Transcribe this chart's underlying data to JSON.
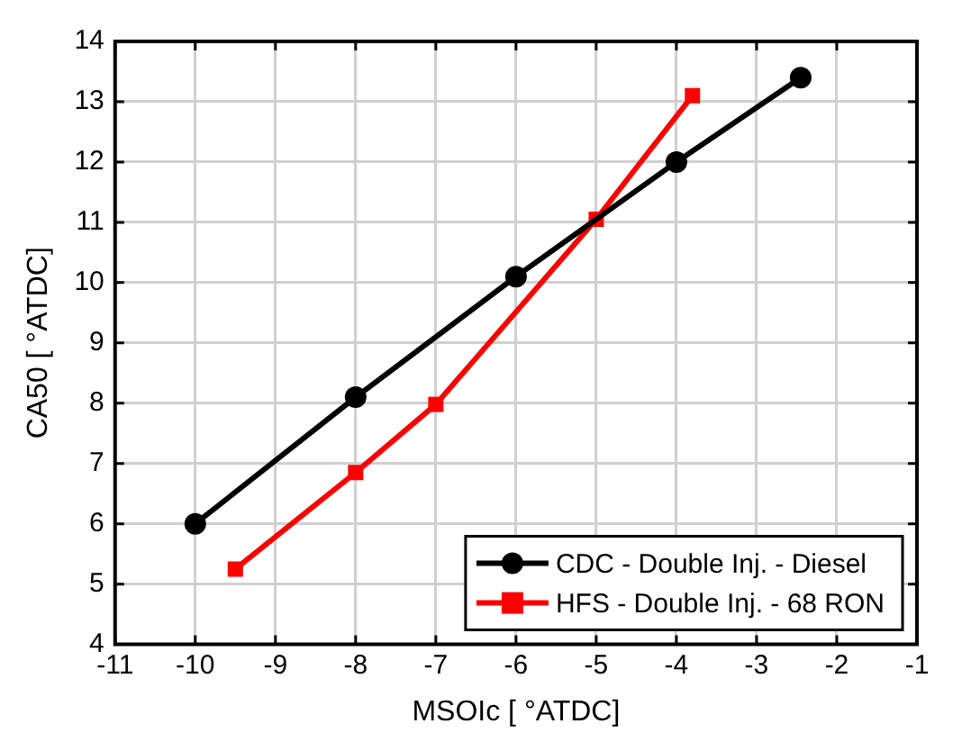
{
  "chart_data": {
    "type": "line",
    "xlabel": "MSOIc [ °ATDC]",
    "ylabel": "CA50 [ °ATDC]",
    "xlim": [
      -11,
      -1
    ],
    "xticks": [
      -11,
      -10,
      -9,
      -8,
      -7,
      -6,
      -5,
      -4,
      -3,
      -2,
      -1
    ],
    "ylim": [
      4,
      14
    ],
    "yticks": [
      4,
      5,
      6,
      7,
      8,
      9,
      10,
      11,
      12,
      13,
      14
    ],
    "grid": true,
    "legend": "bottom right",
    "line_style": "solid",
    "series": [
      {
        "name": "CDC - Double Inj. - Diesel",
        "color": "#000000",
        "marker": "circle",
        "x": [
          -10,
          -8,
          -6,
          -4,
          -2.45
        ],
        "values": [
          6.0,
          8.1,
          10.1,
          12.0,
          13.4
        ]
      },
      {
        "name": "HFS - Double Inj. - 68 RON",
        "color": "#ff0000",
        "marker": "square",
        "x": [
          -9.5,
          -8,
          -7,
          -5,
          -3.8
        ],
        "values": [
          5.25,
          6.85,
          7.98,
          11.05,
          13.1
        ]
      }
    ]
  }
}
